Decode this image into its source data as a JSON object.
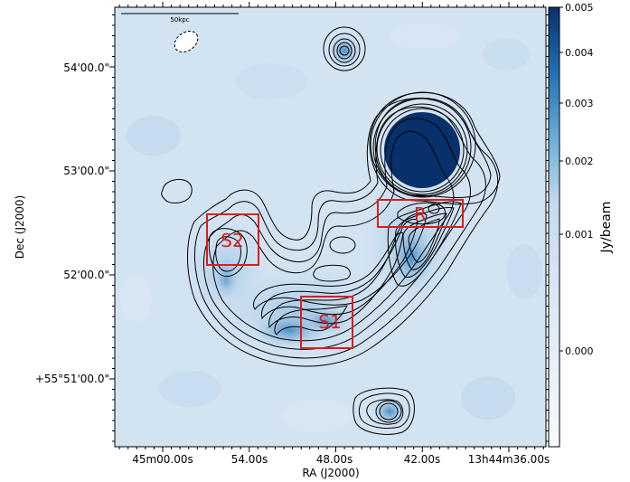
{
  "chart_data": {
    "type": "heatmap",
    "title": "",
    "xlabel": "RA (J2000)",
    "ylabel": "Dec (J2000)",
    "x_ticks": [
      "45m00.00s",
      "54.00s",
      "48.00s",
      "42.00s",
      "13h44m36.00s"
    ],
    "y_ticks": [
      "+55°51'00.0\"",
      "52'00.0\"",
      "53'00.0\"",
      "54'00.0\""
    ],
    "colorbar": {
      "label": "Jy/beam",
      "ticks": [
        "0.000",
        "0.001",
        "0.002",
        "0.003",
        "0.004",
        "0.005"
      ],
      "range": [
        0.0,
        0.005
      ],
      "colormap": "Blues"
    },
    "scalebar_label": "50kpc",
    "regions": [
      {
        "name": "S2",
        "label": "S2"
      },
      {
        "name": "S1",
        "label": "S1"
      },
      {
        "name": "R",
        "label": "R"
      }
    ],
    "colors": {
      "region_box": "#e01b1b",
      "contour": "#000000",
      "bright_source": "#08306b",
      "background": "#cfe0f1"
    }
  }
}
